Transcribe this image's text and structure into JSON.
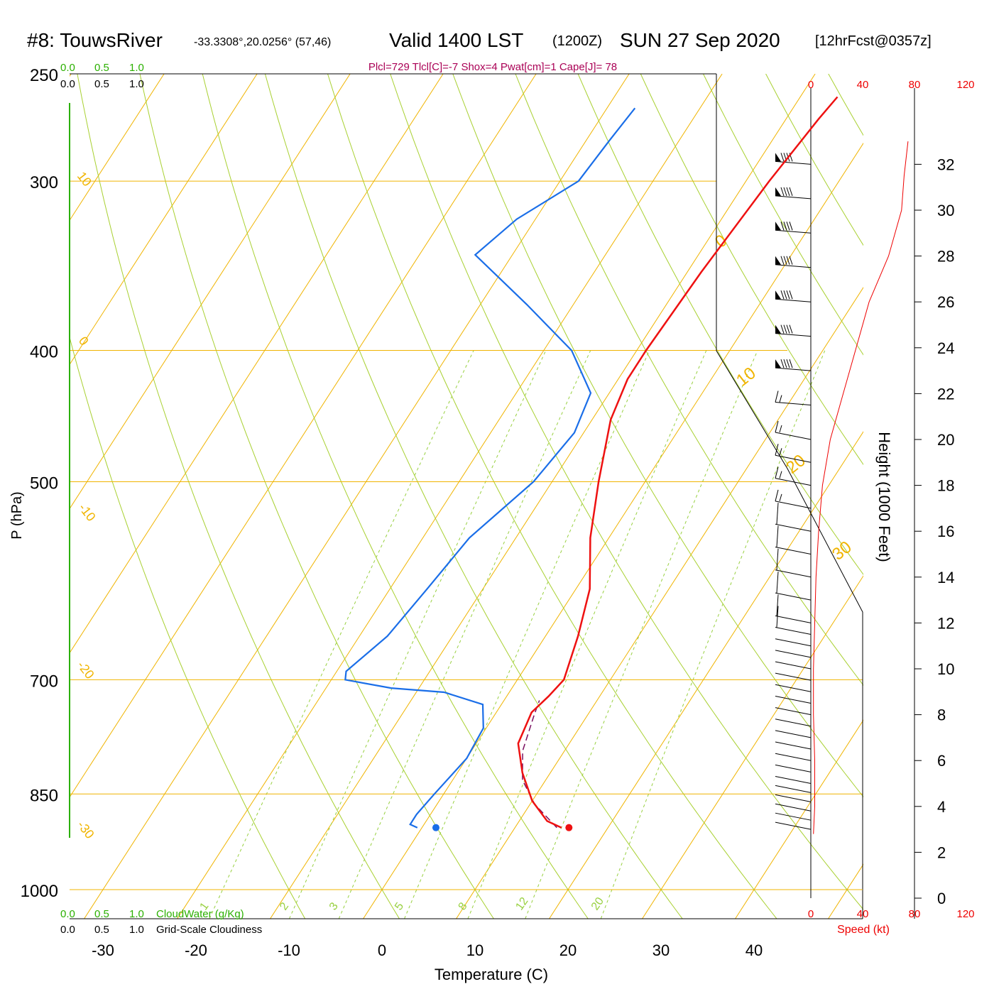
{
  "header": {
    "station": "#8: TouwsRiver",
    "coords": "-33.3308°,20.0256° (57,46)",
    "valid_main": "Valid 1400 LST",
    "valid_z": "(1200Z)",
    "date": "SUN 27 Sep 2020",
    "forecast": "[12hrFcst@0357z]",
    "indices": "Plcl=729 Tlcl[C]=-7 Shox=4 Pwat[cm]=1 Cape[J]= 78"
  },
  "colors": {
    "temperature": "#ee1111",
    "dewpoint": "#1a6ee8",
    "parcel": "#7a1060",
    "isotherm": "#f0b400",
    "dry_adiabat": "#a8d030",
    "mixing_ratio": "#98d040",
    "cloud_green": "#2bb000",
    "speed_red": "#ee0000",
    "indices": "#aa0055"
  },
  "cloud_scale": {
    "top_green": [
      "0.0",
      "0.5",
      "1.0"
    ],
    "top_black": [
      "0.0",
      "0.5",
      "1.0"
    ],
    "bottom_green": [
      "0.0",
      "0.5",
      "1.0"
    ],
    "bottom_black": [
      "0.0",
      "0.5",
      "1.0"
    ],
    "cloudwater_label": "CloudWater (g/Kg)",
    "cloudiness_label": "Grid-Scale Cloudiness"
  },
  "speed_scale": {
    "ticks": [
      "0",
      "40",
      "80",
      "120"
    ],
    "label": "Speed (kt)"
  },
  "height_axis": {
    "label": "Height (1000 Feet)",
    "ticks": [
      "0",
      "2",
      "4",
      "6",
      "8",
      "10",
      "12",
      "14",
      "16",
      "18",
      "20",
      "22",
      "24",
      "26",
      "28",
      "30",
      "32"
    ]
  },
  "chart_data": {
    "type": "line",
    "xlabel": "Temperature (C)",
    "ylabel": "P (hPa)",
    "x_ticks": [
      "-30",
      "-20",
      "-10",
      "0",
      "10",
      "20",
      "30",
      "40"
    ],
    "pressure_ticks": [
      "250",
      "300",
      "400",
      "500",
      "700",
      "850",
      "1000"
    ],
    "isotherm_labels": [
      "10",
      "0",
      "-10",
      "-20",
      "-30",
      "0",
      "10",
      "20",
      "30"
    ],
    "mixing_ratio_labels": [
      "1",
      "2",
      "3",
      "5",
      "8",
      "12",
      "20"
    ],
    "series": [
      {
        "key": "temperature",
        "points": [
          [
            15.0,
            900
          ],
          [
            13.0,
            890
          ],
          [
            10.0,
            860
          ],
          [
            7.0,
            820
          ],
          [
            4.5,
            780
          ],
          [
            3.8,
            740
          ],
          [
            4.5,
            720
          ],
          [
            5.0,
            700
          ],
          [
            3.5,
            650
          ],
          [
            1.5,
            600
          ],
          [
            -2.0,
            550
          ],
          [
            -5.0,
            500
          ],
          [
            -8.0,
            450
          ],
          [
            -9.0,
            420
          ],
          [
            -9.0,
            400
          ],
          [
            -8.5,
            350
          ],
          [
            -7.5,
            300
          ],
          [
            -6.5,
            270
          ],
          [
            -6.0,
            260
          ]
        ]
      },
      {
        "key": "dewpoint",
        "points": [
          [
            -0.5,
            900
          ],
          [
            -1.5,
            895
          ],
          [
            -1.5,
            880
          ],
          [
            -1.0,
            850
          ],
          [
            0.0,
            800
          ],
          [
            -0.3,
            760
          ],
          [
            -2.0,
            730
          ],
          [
            -7.0,
            715
          ],
          [
            -13.0,
            710
          ],
          [
            -18.5,
            700
          ],
          [
            -19.0,
            690
          ],
          [
            -17.0,
            650
          ],
          [
            -16.0,
            600
          ],
          [
            -15.0,
            550
          ],
          [
            -12.0,
            500
          ],
          [
            -11.0,
            460
          ],
          [
            -12.0,
            430
          ],
          [
            -17.0,
            400
          ],
          [
            -25.0,
            370
          ],
          [
            -34.0,
            340
          ],
          [
            -32.0,
            320
          ],
          [
            -28.0,
            300
          ],
          [
            -27.5,
            280
          ],
          [
            -27.0,
            265
          ]
        ]
      },
      {
        "key": "parcel",
        "points": [
          [
            14.5,
            900
          ],
          [
            10.5,
            865
          ],
          [
            7.5,
            830
          ],
          [
            5.5,
            790
          ],
          [
            4.3,
            745
          ],
          [
            3.8,
            725
          ]
        ]
      }
    ],
    "surface_temperature": 15.8,
    "surface_dewpoint": 1.5,
    "surface_pressure": 900,
    "wind_speed_profile": [
      [
        2,
        2.8
      ],
      [
        3,
        4
      ],
      [
        3,
        6
      ],
      [
        2,
        8
      ],
      [
        2,
        10
      ],
      [
        3,
        12
      ],
      [
        4,
        14
      ],
      [
        6,
        16
      ],
      [
        9,
        18
      ],
      [
        15,
        20
      ],
      [
        25,
        22
      ],
      [
        35,
        24
      ],
      [
        45,
        26
      ],
      [
        60,
        28
      ],
      [
        70,
        30
      ],
      [
        72,
        31.5
      ],
      [
        75,
        33
      ]
    ],
    "wind_barb_heights": [
      3.0,
      3.4,
      3.8,
      4.2,
      4.6,
      5.0,
      5.5,
      6.0,
      6.5,
      7.0,
      7.5,
      8.0,
      8.5,
      9.0,
      9.5,
      10.0,
      10.5,
      11.0,
      11.5,
      12.0,
      13.0,
      14.0,
      15.0,
      16.0,
      17.0,
      18.0,
      19.0,
      20.0,
      21.5,
      23.0,
      24.5,
      26.0,
      27.5,
      29.0,
      30.5,
      32.0
    ],
    "grid": true,
    "legend": "none"
  }
}
